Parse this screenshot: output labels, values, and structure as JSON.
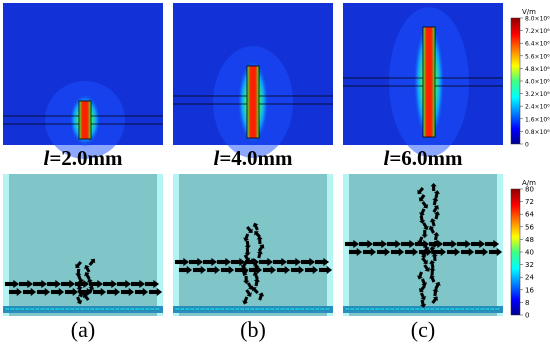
{
  "panels": [
    {
      "caption_variable": "l",
      "caption_value": "=2.0mm",
      "label": "(a)"
    },
    {
      "caption_variable": "l",
      "caption_value": "=4.0mm",
      "label": "(b)"
    },
    {
      "caption_variable": "l",
      "caption_value": "=6.0mm",
      "label": "(c)"
    }
  ],
  "electric_colorbar": {
    "unit": "V/m",
    "ticks": [
      "8.0×10⁶",
      "7.2×10⁶",
      "6.4×10⁶",
      "5.6×10⁶",
      "4.8×10⁶",
      "4.0×10⁶",
      "3.2×10⁶",
      "2.4×10⁶",
      "1.6×10⁶",
      "0.8×10⁶",
      "0"
    ]
  },
  "magnetic_colorbar": {
    "unit": "A/m",
    "ticks": [
      80,
      72,
      64,
      56,
      48,
      40,
      32,
      24,
      16,
      8,
      0
    ]
  }
}
